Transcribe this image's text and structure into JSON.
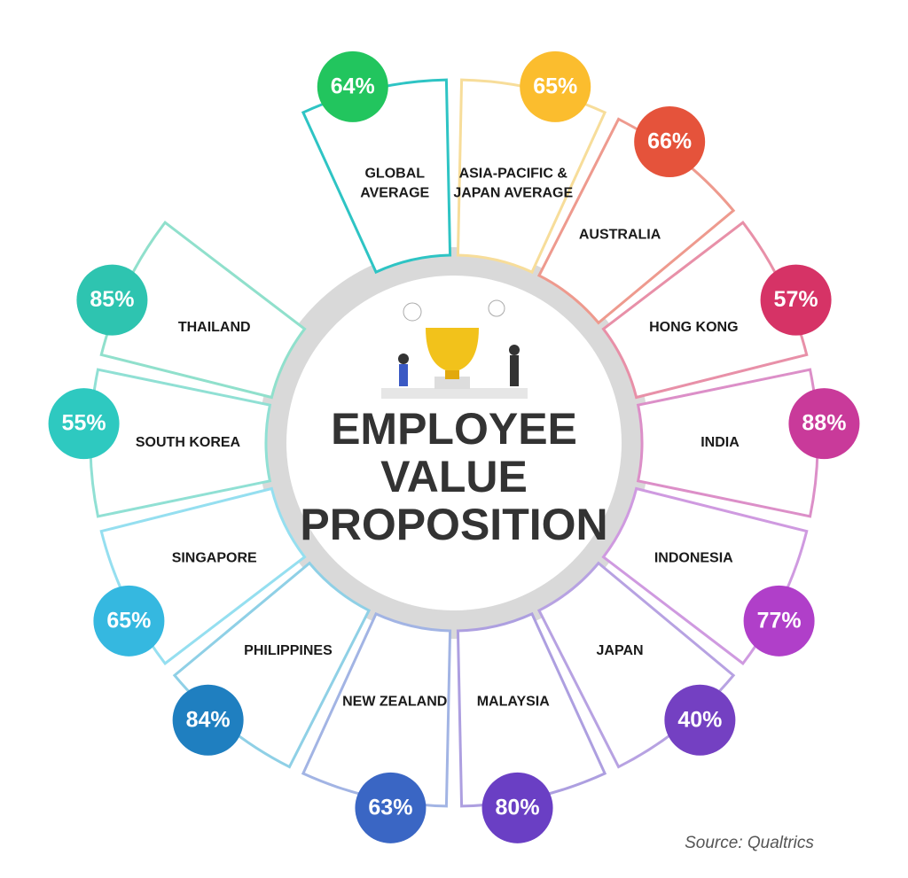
{
  "title": [
    "EMPLOYEE",
    "VALUE",
    "PROPOSITION"
  ],
  "source": "Source: Qualtrics",
  "items": [
    {
      "label": [
        "GLOBAL",
        "AVERAGE"
      ],
      "value": "64%"
    },
    {
      "label": [
        "ASIA-PACIFIC &",
        "JAPAN AVERAGE"
      ],
      "value": "65%"
    },
    {
      "label": [
        "AUSTRALIA"
      ],
      "value": "66%"
    },
    {
      "label": [
        "HONG KONG"
      ],
      "value": "57%"
    },
    {
      "label": [
        "INDIA"
      ],
      "value": "88%"
    },
    {
      "label": [
        "INDONESIA"
      ],
      "value": "77%"
    },
    {
      "label": [
        "JAPAN"
      ],
      "value": "40%"
    },
    {
      "label": [
        "MALAYSIA"
      ],
      "value": "80%"
    },
    {
      "label": [
        "NEW ZEALAND"
      ],
      "value": "63%"
    },
    {
      "label": [
        "PHILIPPINES"
      ],
      "value": "84%"
    },
    {
      "label": [
        "SINGAPORE"
      ],
      "value": "65%"
    },
    {
      "label": [
        "SOUTH KOREA"
      ],
      "value": "55%"
    },
    {
      "label": [
        "THAILAND"
      ],
      "value": "85%"
    }
  ]
}
